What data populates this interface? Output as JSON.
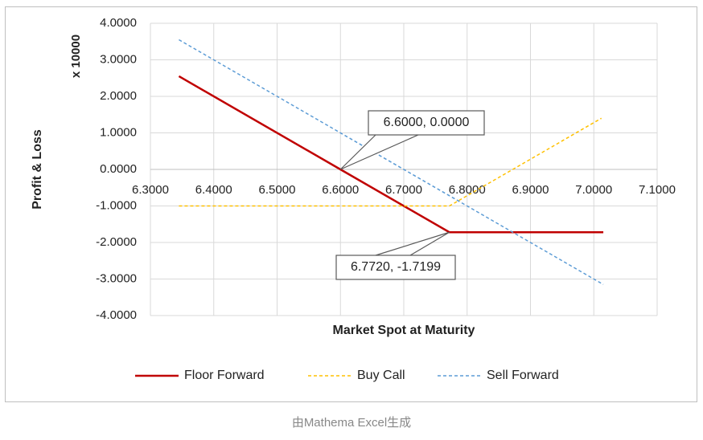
{
  "chart_data": {
    "type": "line",
    "xlabel": "Market Spot at Maturity",
    "ylabel": "Profit & Loss",
    "yunit": "x 10000",
    "xlim": [
      6.3,
      7.1
    ],
    "xticks": [
      {
        "value": 6.3,
        "label": "6.3000"
      },
      {
        "value": 6.4,
        "label": "6.4000"
      },
      {
        "value": 6.5,
        "label": "6.5000"
      },
      {
        "value": 6.6,
        "label": "6.6000"
      },
      {
        "value": 6.7,
        "label": "6.7000"
      },
      {
        "value": 6.8,
        "label": "6.8000"
      },
      {
        "value": 6.9,
        "label": "6.9000"
      },
      {
        "value": 7.0,
        "label": "7.0000"
      },
      {
        "value": 7.1,
        "label": "7.1000"
      }
    ],
    "ylim": [
      -4,
      4
    ],
    "yticks": [
      {
        "value": 4,
        "label": "4.0000"
      },
      {
        "value": 3,
        "label": "3.0000"
      },
      {
        "value": 2,
        "label": "2.0000"
      },
      {
        "value": 1,
        "label": "1.0000"
      },
      {
        "value": 0,
        "label": "0.0000"
      },
      {
        "value": -1,
        "label": "-1.0000"
      },
      {
        "value": -2,
        "label": "-2.0000"
      },
      {
        "value": -3,
        "label": "-3.0000"
      },
      {
        "value": -4,
        "label": "-4.0000"
      }
    ],
    "grid": true,
    "legend": "bottom",
    "series": [
      {
        "name": "Floor Forward",
        "color": "#c00000",
        "dash": "none",
        "x": [
          6.345,
          6.6,
          6.772,
          7.015
        ],
        "values": [
          2.55,
          0,
          -1.7199,
          -1.72
        ]
      },
      {
        "name": "Buy Call",
        "color": "#ffc000",
        "dash": "4,3",
        "x": [
          6.345,
          6.772,
          7.012
        ],
        "values": [
          -1.0,
          -1.0,
          1.4
        ]
      },
      {
        "name": "Sell Forward",
        "color": "#5b9bd5",
        "dash": "4,3",
        "x": [
          6.345,
          7.015
        ],
        "values": [
          3.55,
          -3.15
        ]
      }
    ],
    "annotations": [
      "6.6000, 0.0000",
      "6.7720, -1.7199"
    ]
  },
  "caption": "由Mathema Excel生成"
}
